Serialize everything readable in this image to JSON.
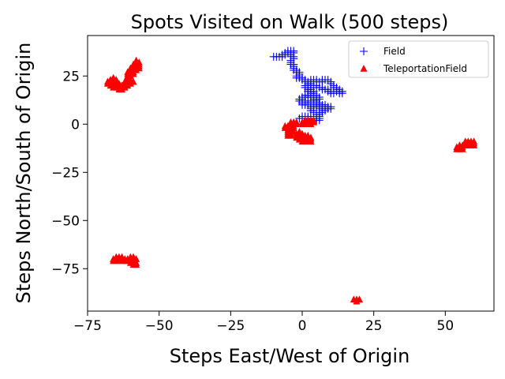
{
  "chart_data": {
    "type": "scatter",
    "title": "Spots Visited on Walk (500 steps)",
    "xlabel": "Steps East/West of Origin",
    "ylabel": "Steps North/South of Origin",
    "xlim": [
      -75,
      67
    ],
    "ylim": [
      -97,
      46
    ],
    "xticks": [
      -75,
      -50,
      -25,
      0,
      25,
      50
    ],
    "yticks": [
      25,
      0,
      -25,
      -50,
      -75
    ],
    "xtick_labels": [
      "−75",
      "−50",
      "−25",
      "0",
      "25",
      "50"
    ],
    "ytick_labels": [
      "25",
      "0",
      "−25",
      "−50",
      "−75"
    ],
    "legend_position": "top-right",
    "series": [
      {
        "name": "Field",
        "marker": "plus",
        "color": "#0000ff",
        "points": [
          [
            -10,
            35
          ],
          [
            -9,
            35
          ],
          [
            -8,
            35
          ],
          [
            -7,
            35
          ],
          [
            -7,
            36
          ],
          [
            -6,
            36
          ],
          [
            -6,
            37
          ],
          [
            -5,
            37
          ],
          [
            -5,
            38
          ],
          [
            -4,
            38
          ],
          [
            -3,
            38
          ],
          [
            -3,
            37
          ],
          [
            -4,
            37
          ],
          [
            -4,
            36
          ],
          [
            -4,
            35
          ],
          [
            -3,
            35
          ],
          [
            -3,
            34
          ],
          [
            -4,
            33
          ],
          [
            -4,
            32
          ],
          [
            -4,
            31
          ],
          [
            -3,
            31
          ],
          [
            -3,
            30
          ],
          [
            -3,
            29
          ],
          [
            -3,
            28
          ],
          [
            -2,
            28
          ],
          [
            -2,
            27
          ],
          [
            -1,
            27
          ],
          [
            -1,
            26
          ],
          [
            -1,
            25
          ],
          [
            -2,
            25
          ],
          [
            -2,
            24
          ],
          [
            -1,
            24
          ],
          [
            0,
            24
          ],
          [
            0,
            23
          ],
          [
            1,
            23
          ],
          [
            1,
            22
          ],
          [
            2,
            22
          ],
          [
            3,
            22
          ],
          [
            3,
            23
          ],
          [
            4,
            23
          ],
          [
            5,
            23
          ],
          [
            5,
            22
          ],
          [
            6,
            22
          ],
          [
            7,
            22
          ],
          [
            7,
            23
          ],
          [
            8,
            23
          ],
          [
            9,
            23
          ],
          [
            10,
            22
          ],
          [
            10,
            21
          ],
          [
            11,
            20
          ],
          [
            11,
            19
          ],
          [
            12,
            19
          ],
          [
            12,
            18
          ],
          [
            13,
            18
          ],
          [
            13,
            17
          ],
          [
            13,
            16
          ],
          [
            14,
            16
          ],
          [
            14,
            17
          ],
          [
            12,
            17
          ],
          [
            11,
            16
          ],
          [
            10,
            16
          ],
          [
            10,
            17
          ],
          [
            9,
            17
          ],
          [
            9,
            18
          ],
          [
            8,
            18
          ],
          [
            7,
            18
          ],
          [
            7,
            19
          ],
          [
            6,
            19
          ],
          [
            5,
            19
          ],
          [
            5,
            20
          ],
          [
            4,
            20
          ],
          [
            3,
            20
          ],
          [
            3,
            21
          ],
          [
            2,
            21
          ],
          [
            2,
            20
          ],
          [
            1,
            20
          ],
          [
            1,
            19
          ],
          [
            2,
            19
          ],
          [
            3,
            19
          ],
          [
            3,
            18
          ],
          [
            2,
            18
          ],
          [
            2,
            17
          ],
          [
            3,
            17
          ],
          [
            4,
            17
          ],
          [
            4,
            16
          ],
          [
            3,
            16
          ],
          [
            3,
            15
          ],
          [
            2,
            15
          ],
          [
            1,
            15
          ],
          [
            1,
            14
          ],
          [
            0,
            14
          ],
          [
            0,
            13
          ],
          [
            0,
            12
          ],
          [
            1,
            12
          ],
          [
            1,
            11
          ],
          [
            0,
            11
          ],
          [
            0,
            10
          ],
          [
            1,
            10
          ],
          [
            2,
            10
          ],
          [
            2,
            11
          ],
          [
            3,
            11
          ],
          [
            3,
            12
          ],
          [
            4,
            12
          ],
          [
            5,
            12
          ],
          [
            5,
            11
          ],
          [
            6,
            11
          ],
          [
            6,
            10
          ],
          [
            7,
            10
          ],
          [
            8,
            10
          ],
          [
            8,
            9
          ],
          [
            9,
            9
          ],
          [
            10,
            9
          ],
          [
            10,
            8
          ],
          [
            9,
            8
          ],
          [
            8,
            8
          ],
          [
            8,
            7
          ],
          [
            7,
            7
          ],
          [
            7,
            6
          ],
          [
            6,
            6
          ],
          [
            6,
            5
          ],
          [
            5,
            5
          ],
          [
            5,
            4
          ],
          [
            5,
            3
          ],
          [
            5,
            2
          ],
          [
            6,
            2
          ],
          [
            6,
            3
          ],
          [
            6,
            4
          ],
          [
            4,
            6
          ],
          [
            4,
            7
          ],
          [
            3,
            7
          ],
          [
            3,
            8
          ],
          [
            3,
            9
          ],
          [
            4,
            9
          ],
          [
            4,
            10
          ],
          [
            5,
            10
          ],
          [
            5,
            9
          ],
          [
            6,
            9
          ],
          [
            6,
            8
          ],
          [
            7,
            8
          ],
          [
            7,
            9
          ],
          [
            -1,
            3
          ],
          [
            0,
            3
          ],
          [
            0,
            4
          ],
          [
            1,
            4
          ],
          [
            2,
            4
          ],
          [
            2,
            3
          ],
          [
            3,
            3
          ],
          [
            3,
            4
          ],
          [
            -1,
            12
          ],
          [
            -1,
            13
          ],
          [
            2,
            14
          ],
          [
            3,
            14
          ],
          [
            4,
            14
          ],
          [
            4,
            15
          ],
          [
            5,
            15
          ],
          [
            5,
            14
          ],
          [
            6,
            14
          ],
          [
            6,
            13
          ],
          [
            5,
            13
          ],
          [
            4,
            13
          ]
        ]
      },
      {
        "name": "TeleportationField",
        "marker": "triangle",
        "color": "#ff0000",
        "points": [
          [
            -68,
            21
          ],
          [
            -68,
            22
          ],
          [
            -67,
            20
          ],
          [
            -67,
            21
          ],
          [
            -67,
            22
          ],
          [
            -67,
            23
          ],
          [
            -66,
            19
          ],
          [
            -66,
            20
          ],
          [
            -66,
            21
          ],
          [
            -66,
            22
          ],
          [
            -66,
            23
          ],
          [
            -66,
            24
          ],
          [
            -65,
            19
          ],
          [
            -65,
            20
          ],
          [
            -65,
            21
          ],
          [
            -65,
            22
          ],
          [
            -65,
            23
          ],
          [
            -64,
            18
          ],
          [
            -64,
            19
          ],
          [
            -64,
            20
          ],
          [
            -64,
            21
          ],
          [
            -63,
            18
          ],
          [
            -63,
            19
          ],
          [
            -63,
            20
          ],
          [
            -62,
            19
          ],
          [
            -62,
            20
          ],
          [
            -62,
            21
          ],
          [
            -62,
            22
          ],
          [
            -61,
            20
          ],
          [
            -61,
            21
          ],
          [
            -61,
            22
          ],
          [
            -61,
            23
          ],
          [
            -61,
            24
          ],
          [
            -61,
            25
          ],
          [
            -61,
            26
          ],
          [
            -61,
            27
          ],
          [
            -60,
            21
          ],
          [
            -60,
            22
          ],
          [
            -60,
            23
          ],
          [
            -60,
            25
          ],
          [
            -60,
            26
          ],
          [
            -60,
            27
          ],
          [
            -60,
            28
          ],
          [
            -60,
            29
          ],
          [
            -59,
            22
          ],
          [
            -59,
            26
          ],
          [
            -59,
            27
          ],
          [
            -59,
            28
          ],
          [
            -59,
            29
          ],
          [
            -59,
            30
          ],
          [
            -59,
            31
          ],
          [
            -58,
            28
          ],
          [
            -58,
            29
          ],
          [
            -58,
            30
          ],
          [
            -58,
            31
          ],
          [
            -58,
            32
          ],
          [
            -58,
            33
          ],
          [
            -57,
            29
          ],
          [
            -57,
            30
          ],
          [
            -57,
            31
          ],
          [
            -57,
            32
          ],
          [
            -6,
            -2
          ],
          [
            -6,
            -1
          ],
          [
            -5,
            -2
          ],
          [
            -5,
            -1
          ],
          [
            -5,
            -3
          ],
          [
            -5,
            -4
          ],
          [
            -5,
            -5
          ],
          [
            -5,
            -6
          ],
          [
            -4,
            -1
          ],
          [
            -4,
            0
          ],
          [
            -4,
            1
          ],
          [
            -4,
            -3
          ],
          [
            -4,
            -5
          ],
          [
            -4,
            -6
          ],
          [
            -3,
            -1
          ],
          [
            -3,
            0
          ],
          [
            -3,
            1
          ],
          [
            -3,
            -2
          ],
          [
            -3,
            -4
          ],
          [
            -2,
            0
          ],
          [
            -2,
            1
          ],
          [
            -2,
            -5
          ],
          [
            -2,
            -6
          ],
          [
            -2,
            -7
          ],
          [
            -1,
            -4
          ],
          [
            -1,
            -5
          ],
          [
            -1,
            -6
          ],
          [
            -1,
            -7
          ],
          [
            -1,
            -8
          ],
          [
            0,
            0
          ],
          [
            0,
            1
          ],
          [
            0,
            -5
          ],
          [
            0,
            -6
          ],
          [
            0,
            -7
          ],
          [
            0,
            -8
          ],
          [
            0,
            -9
          ],
          [
            1,
            0
          ],
          [
            1,
            1
          ],
          [
            1,
            2
          ],
          [
            1,
            -6
          ],
          [
            1,
            -7
          ],
          [
            1,
            -8
          ],
          [
            1,
            -9
          ],
          [
            2,
            1
          ],
          [
            2,
            2
          ],
          [
            2,
            -6
          ],
          [
            2,
            -7
          ],
          [
            2,
            -8
          ],
          [
            2,
            -9
          ],
          [
            3,
            0
          ],
          [
            3,
            1
          ],
          [
            3,
            2
          ],
          [
            3,
            -7
          ],
          [
            3,
            -8
          ],
          [
            3,
            -9
          ],
          [
            4,
            1
          ],
          [
            4,
            2
          ],
          [
            -66,
            -71
          ],
          [
            -66,
            -70
          ],
          [
            -65,
            -71
          ],
          [
            -65,
            -70
          ],
          [
            -65,
            -69
          ],
          [
            -64,
            -70
          ],
          [
            -64,
            -69
          ],
          [
            -63,
            -71
          ],
          [
            -63,
            -70
          ],
          [
            -63,
            -69
          ],
          [
            -62,
            -70
          ],
          [
            -62,
            -71
          ],
          [
            -61,
            -70
          ],
          [
            -61,
            -71
          ],
          [
            -60,
            -69
          ],
          [
            -60,
            -70
          ],
          [
            -60,
            -71
          ],
          [
            -60,
            -72
          ],
          [
            -59,
            -71
          ],
          [
            -59,
            -72
          ],
          [
            -59,
            -73
          ],
          [
            -58,
            -72
          ],
          [
            -58,
            -73
          ],
          [
            -59,
            -69
          ],
          [
            -58,
            -70
          ],
          [
            54,
            -13
          ],
          [
            54,
            -12
          ],
          [
            55,
            -11
          ],
          [
            55,
            -12
          ],
          [
            55,
            -13
          ],
          [
            56,
            -12
          ],
          [
            56,
            -13
          ],
          [
            56,
            -11
          ],
          [
            57,
            -10
          ],
          [
            57,
            -9
          ],
          [
            57,
            -11
          ],
          [
            58,
            -9
          ],
          [
            58,
            -10
          ],
          [
            58,
            -11
          ],
          [
            59,
            -9
          ],
          [
            59,
            -10
          ],
          [
            59,
            -11
          ],
          [
            60,
            -9
          ],
          [
            60,
            -10
          ],
          [
            60,
            -11
          ],
          [
            18,
            -91
          ],
          [
            19,
            -91
          ],
          [
            20,
            -91
          ],
          [
            19,
            -92
          ]
        ]
      }
    ]
  }
}
